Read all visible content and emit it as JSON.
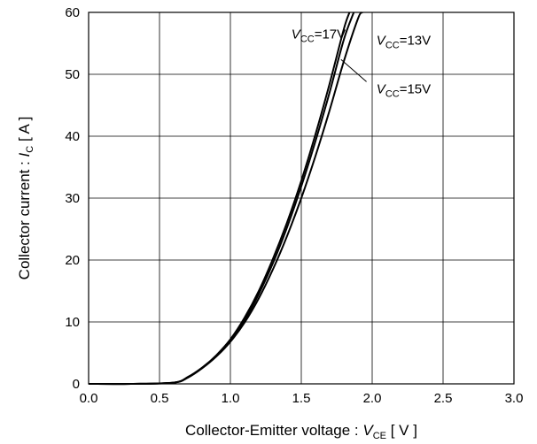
{
  "chart_data": {
    "type": "line",
    "xlabel": {
      "prefix": "Collector-Emitter voltage : ",
      "symbol": "V",
      "subscript": "CE",
      "unit": " [ V ]"
    },
    "ylabel": {
      "prefix": "Collector current : ",
      "symbol": "I",
      "subscript": "C",
      "unit": " [ A ]"
    },
    "xlim": [
      0.0,
      3.0
    ],
    "ylim": [
      0,
      60
    ],
    "x_ticks": [
      "0.0",
      "0.5",
      "1.0",
      "1.5",
      "2.0",
      "2.5",
      "3.0"
    ],
    "y_ticks": [
      "0",
      "10",
      "20",
      "30",
      "40",
      "50",
      "60"
    ],
    "grid": true,
    "series": [
      {
        "label_symbol": "V",
        "label_subscript": "CC",
        "label_value": "=17V",
        "x": [
          0.0,
          0.3,
          0.6,
          0.7,
          0.8,
          0.9,
          1.0,
          1.1,
          1.2,
          1.3,
          1.4,
          1.5,
          1.6,
          1.7,
          1.8,
          1.84
        ],
        "y": [
          0.0,
          0.0,
          0.2,
          1.1,
          2.6,
          4.6,
          7.2,
          10.7,
          15.0,
          20.2,
          26.1,
          32.8,
          40.3,
          48.5,
          57.3,
          60.0
        ]
      },
      {
        "label_symbol": "V",
        "label_subscript": "CC",
        "label_value": "=15V",
        "x": [
          0.0,
          0.3,
          0.6,
          0.7,
          0.8,
          0.9,
          1.0,
          1.1,
          1.2,
          1.3,
          1.4,
          1.5,
          1.6,
          1.7,
          1.8,
          1.87
        ],
        "y": [
          0.0,
          0.0,
          0.2,
          1.1,
          2.6,
          4.5,
          7.0,
          10.3,
          14.5,
          19.5,
          25.3,
          31.9,
          39.2,
          47.1,
          55.6,
          60.0
        ]
      },
      {
        "label_symbol": "V",
        "label_subscript": "CC",
        "label_value": "=13V",
        "x": [
          0.0,
          0.3,
          0.6,
          0.7,
          0.8,
          0.9,
          1.0,
          1.1,
          1.2,
          1.3,
          1.4,
          1.5,
          1.6,
          1.7,
          1.8,
          1.9,
          1.93
        ],
        "y": [
          0.0,
          0.0,
          0.2,
          1.0,
          2.5,
          4.4,
          6.8,
          9.9,
          13.8,
          18.5,
          23.9,
          30.0,
          36.8,
          44.2,
          52.1,
          59.0,
          60.0
        ]
      }
    ],
    "annotations": [
      {
        "series": 0,
        "label_x": 1.43,
        "label_y": 55.8
      },
      {
        "series": 2,
        "label_x": 2.03,
        "label_y": 54.8
      },
      {
        "series": 1,
        "label_x": 2.03,
        "label_y": 46.9,
        "leader": [
          [
            1.78,
            52.4
          ],
          [
            1.96,
            48.8
          ]
        ]
      }
    ]
  }
}
